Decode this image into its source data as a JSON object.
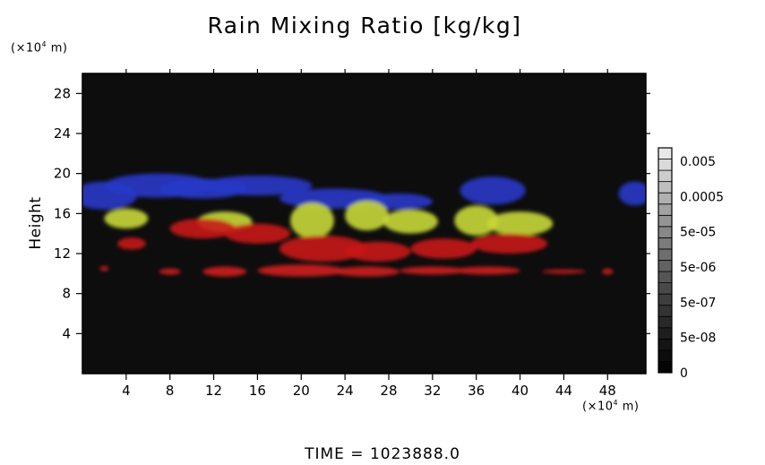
{
  "chart_data": {
    "type": "heatmap",
    "title": "Rain Mixing Ratio [kg/kg]",
    "ylabel": "Height",
    "y_unit_prefix": "(×10",
    "y_unit_exp": "4",
    "y_unit_suffix": " m)",
    "x_unit_prefix": "(×10",
    "x_unit_exp": "4",
    "x_unit_suffix": " m)",
    "xlim": [
      0,
      51.5
    ],
    "ylim": [
      0,
      30
    ],
    "x_ticks": [
      4,
      8,
      12,
      16,
      20,
      24,
      28,
      32,
      36,
      40,
      44,
      48
    ],
    "y_ticks": [
      4,
      8,
      12,
      16,
      20,
      24,
      28
    ],
    "background_color": "#0d0d0d",
    "colorbar": {
      "labels": [
        "0.005",
        "0.0005",
        "5e-05",
        "5e-06",
        "5e-07",
        "5e-08",
        "0"
      ],
      "levels": 20,
      "color_low": "#050505",
      "color_high": "#e8e8e8"
    },
    "features": [
      {
        "name": "blue layer",
        "color": "#2838c8",
        "blobs": [
          [
            2,
            17.8,
            3,
            1.4
          ],
          [
            7,
            18.8,
            5,
            1.2
          ],
          [
            11,
            18.5,
            4,
            1
          ],
          [
            16,
            18.8,
            5,
            1
          ],
          [
            23,
            17.5,
            5,
            1
          ],
          [
            29,
            17.2,
            3,
            0.8
          ],
          [
            37.5,
            18.3,
            3,
            1.4
          ],
          [
            50.5,
            18,
            1.5,
            1.2
          ]
        ]
      },
      {
        "name": "yellow layer",
        "color": "#c8d838",
        "blobs": [
          [
            4,
            15.5,
            2,
            1
          ],
          [
            13,
            15.2,
            2.5,
            1
          ],
          [
            21,
            15.3,
            2,
            1.8
          ],
          [
            26,
            15.8,
            2,
            1.5
          ],
          [
            30,
            15.2,
            2.5,
            1.2
          ],
          [
            36,
            15.3,
            2,
            1.5
          ],
          [
            40,
            15,
            3,
            1.2
          ]
        ]
      },
      {
        "name": "upper red layer",
        "color": "#c81a1a",
        "blobs": [
          [
            4.5,
            13,
            1.3,
            0.6
          ],
          [
            11,
            14.5,
            3,
            1
          ],
          [
            16,
            14,
            3,
            1
          ],
          [
            22,
            12.5,
            4,
            1.3
          ],
          [
            27,
            12.2,
            3,
            1
          ],
          [
            33,
            12.5,
            3,
            1
          ],
          [
            39,
            13,
            3.5,
            1
          ]
        ]
      },
      {
        "name": "lower red layer",
        "color": "#d01c1c",
        "blobs": [
          [
            2,
            10.5,
            0.4,
            0.25
          ],
          [
            8,
            10.2,
            1,
            0.3
          ],
          [
            13,
            10.2,
            2,
            0.5
          ],
          [
            20,
            10.3,
            4,
            0.6
          ],
          [
            26,
            10.2,
            3,
            0.5
          ],
          [
            32,
            10.3,
            3,
            0.4
          ],
          [
            37,
            10.3,
            3,
            0.4
          ],
          [
            44,
            10.2,
            2,
            0.2
          ],
          [
            48,
            10.2,
            0.5,
            0.3
          ]
        ]
      }
    ]
  },
  "time_label": "TIME = 1023888.0"
}
